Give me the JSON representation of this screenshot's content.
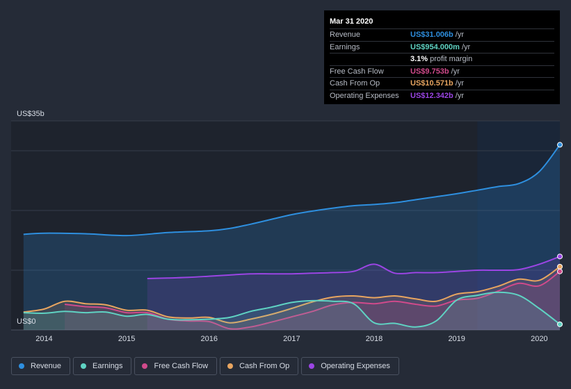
{
  "tooltip": {
    "date": "Mar 31 2020",
    "rows": [
      {
        "label": "Revenue",
        "value": "US$31.006b",
        "unit": "/yr",
        "color": "#2e8fdf"
      },
      {
        "label": "Earnings",
        "value": "US$954.000m",
        "unit": "/yr",
        "color": "#5fd3c3"
      },
      {
        "label": "",
        "value": "3.1%",
        "unit": "profit margin",
        "color": "#ffffff"
      },
      {
        "label": "Free Cash Flow",
        "value": "US$9.753b",
        "unit": "/yr",
        "color": "#d04a8b"
      },
      {
        "label": "Cash From Op",
        "value": "US$10.571b",
        "unit": "/yr",
        "color": "#e8a560"
      },
      {
        "label": "Operating Expenses",
        "value": "US$12.342b",
        "unit": "/yr",
        "color": "#9b45e4"
      }
    ]
  },
  "legend": [
    {
      "label": "Revenue",
      "color": "#2e8fdf"
    },
    {
      "label": "Earnings",
      "color": "#5fd3c3"
    },
    {
      "label": "Free Cash Flow",
      "color": "#d04a8b"
    },
    {
      "label": "Cash From Op",
      "color": "#e8a560"
    },
    {
      "label": "Operating Expenses",
      "color": "#9b45e4"
    }
  ],
  "chart_data": {
    "type": "area",
    "xlabel": "",
    "ylabel": "",
    "y_top_label": "US$35b",
    "y_bottom_label": "US$0",
    "ylim": [
      0,
      35
    ],
    "xlim": [
      2013.6,
      2020.25
    ],
    "x_ticks": [
      2014,
      2015,
      2016,
      2017,
      2018,
      2019,
      2020
    ],
    "grid": true,
    "highlight_from": 2019.25,
    "series": [
      {
        "name": "Revenue",
        "color": "#2e8fdf",
        "points": [
          [
            2013.75,
            16.0
          ],
          [
            2014.0,
            16.2
          ],
          [
            2014.5,
            16.1
          ],
          [
            2015.0,
            15.8
          ],
          [
            2015.5,
            16.3
          ],
          [
            2016.0,
            16.6
          ],
          [
            2016.25,
            17.0
          ],
          [
            2016.5,
            17.7
          ],
          [
            2016.75,
            18.5
          ],
          [
            2017.0,
            19.3
          ],
          [
            2017.25,
            19.9
          ],
          [
            2017.5,
            20.4
          ],
          [
            2017.75,
            20.8
          ],
          [
            2018.0,
            21.0
          ],
          [
            2018.25,
            21.3
          ],
          [
            2018.5,
            21.8
          ],
          [
            2018.75,
            22.3
          ],
          [
            2019.0,
            22.8
          ],
          [
            2019.25,
            23.4
          ],
          [
            2019.5,
            24.0
          ],
          [
            2019.75,
            24.5
          ],
          [
            2020.0,
            26.5
          ],
          [
            2020.25,
            31.0
          ]
        ]
      },
      {
        "name": "Operating Expenses",
        "color": "#9b45e4",
        "points": [
          [
            2015.25,
            8.6
          ],
          [
            2015.5,
            8.7
          ],
          [
            2015.75,
            8.8
          ],
          [
            2016.0,
            9.0
          ],
          [
            2016.25,
            9.2
          ],
          [
            2016.5,
            9.4
          ],
          [
            2016.75,
            9.4
          ],
          [
            2017.0,
            9.4
          ],
          [
            2017.25,
            9.5
          ],
          [
            2017.5,
            9.6
          ],
          [
            2017.75,
            9.8
          ],
          [
            2018.0,
            11.0
          ],
          [
            2018.25,
            9.5
          ],
          [
            2018.5,
            9.6
          ],
          [
            2018.75,
            9.6
          ],
          [
            2019.0,
            9.8
          ],
          [
            2019.25,
            10.0
          ],
          [
            2019.5,
            10.0
          ],
          [
            2019.75,
            10.1
          ],
          [
            2020.0,
            11.0
          ],
          [
            2020.25,
            12.3
          ]
        ]
      },
      {
        "name": "Cash From Op",
        "color": "#e8a560",
        "points": [
          [
            2013.75,
            3.0
          ],
          [
            2014.0,
            3.5
          ],
          [
            2014.25,
            4.8
          ],
          [
            2014.5,
            4.4
          ],
          [
            2014.75,
            4.2
          ],
          [
            2015.0,
            3.3
          ],
          [
            2015.25,
            3.3
          ],
          [
            2015.5,
            2.2
          ],
          [
            2015.75,
            2.0
          ],
          [
            2016.0,
            2.1
          ],
          [
            2016.25,
            1.2
          ],
          [
            2016.5,
            1.8
          ],
          [
            2016.75,
            2.6
          ],
          [
            2017.0,
            3.6
          ],
          [
            2017.25,
            4.7
          ],
          [
            2017.5,
            5.5
          ],
          [
            2017.75,
            5.7
          ],
          [
            2018.0,
            5.4
          ],
          [
            2018.25,
            5.7
          ],
          [
            2018.5,
            5.2
          ],
          [
            2018.75,
            4.8
          ],
          [
            2019.0,
            6.0
          ],
          [
            2019.25,
            6.4
          ],
          [
            2019.5,
            7.3
          ],
          [
            2019.75,
            8.5
          ],
          [
            2020.0,
            8.3
          ],
          [
            2020.25,
            10.6
          ]
        ]
      },
      {
        "name": "Free Cash Flow",
        "color": "#d04a8b",
        "points": [
          [
            2014.25,
            4.3
          ],
          [
            2014.5,
            3.9
          ],
          [
            2014.75,
            3.7
          ],
          [
            2015.0,
            2.9
          ],
          [
            2015.25,
            2.9
          ],
          [
            2015.5,
            1.8
          ],
          [
            2015.75,
            1.5
          ],
          [
            2016.0,
            1.4
          ],
          [
            2016.25,
            0.2
          ],
          [
            2016.5,
            0.5
          ],
          [
            2016.75,
            1.3
          ],
          [
            2017.0,
            2.2
          ],
          [
            2017.25,
            3.1
          ],
          [
            2017.5,
            4.2
          ],
          [
            2017.75,
            4.6
          ],
          [
            2018.0,
            4.4
          ],
          [
            2018.25,
            4.8
          ],
          [
            2018.5,
            4.3
          ],
          [
            2018.75,
            4.0
          ],
          [
            2019.0,
            5.0
          ],
          [
            2019.25,
            5.3
          ],
          [
            2019.5,
            6.5
          ],
          [
            2019.75,
            7.8
          ],
          [
            2020.0,
            7.4
          ],
          [
            2020.25,
            9.8
          ]
        ]
      },
      {
        "name": "Earnings",
        "color": "#5fd3c3",
        "points": [
          [
            2013.75,
            2.9
          ],
          [
            2014.0,
            2.8
          ],
          [
            2014.25,
            3.1
          ],
          [
            2014.5,
            2.9
          ],
          [
            2014.75,
            3.0
          ],
          [
            2015.0,
            2.3
          ],
          [
            2015.25,
            2.6
          ],
          [
            2015.5,
            1.8
          ],
          [
            2015.75,
            1.7
          ],
          [
            2016.0,
            1.8
          ],
          [
            2016.25,
            2.1
          ],
          [
            2016.5,
            3.1
          ],
          [
            2016.75,
            3.8
          ],
          [
            2017.0,
            4.6
          ],
          [
            2017.25,
            4.9
          ],
          [
            2017.5,
            4.8
          ],
          [
            2017.75,
            4.4
          ],
          [
            2018.0,
            1.2
          ],
          [
            2018.25,
            1.1
          ],
          [
            2018.5,
            0.5
          ],
          [
            2018.75,
            1.5
          ],
          [
            2019.0,
            5.0
          ],
          [
            2019.25,
            5.8
          ],
          [
            2019.5,
            6.3
          ],
          [
            2019.75,
            5.8
          ],
          [
            2020.0,
            3.6
          ],
          [
            2020.25,
            0.95
          ]
        ]
      }
    ]
  }
}
